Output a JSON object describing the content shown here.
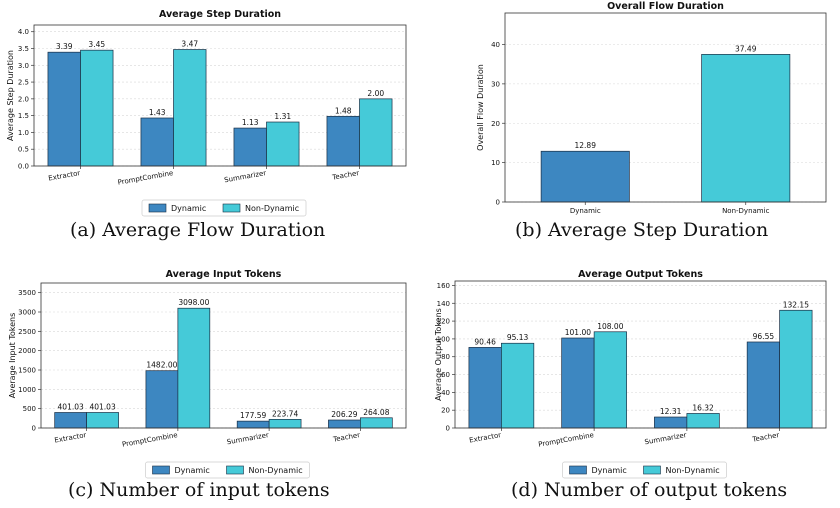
{
  "colors": {
    "dynamic": "#3d87c1",
    "nondynamic": "#45cad8",
    "edge": "#1a2e44"
  },
  "chart_data": [
    {
      "id": "a",
      "type": "bar",
      "title": "Average Step Duration",
      "ylabel": "Average Step Duration",
      "xlabel": "",
      "caption": "(a)  Average Flow Duration",
      "categories": [
        "Extractor",
        "PromptCombine",
        "Summarizer",
        "Teacher"
      ],
      "series": [
        {
          "name": "Dynamic",
          "values": [
            3.39,
            1.43,
            1.13,
            1.48
          ],
          "labels": [
            "3.39",
            "1.43",
            "1.13",
            "1.48"
          ]
        },
        {
          "name": "Non-Dynamic",
          "values": [
            3.45,
            3.47,
            1.31,
            2.0
          ],
          "labels": [
            "3.45",
            "3.47",
            "1.31",
            "2.00"
          ]
        }
      ],
      "ylim": [
        0,
        4.2
      ],
      "yticks": [
        0.0,
        0.5,
        1.0,
        1.5,
        2.0,
        2.5,
        3.0,
        3.5,
        4.0
      ],
      "yticklabels": [
        "0.0",
        "0.5",
        "1.0",
        "1.5",
        "2.0",
        "2.5",
        "3.0",
        "3.5",
        "4.0"
      ],
      "grid": true,
      "legend": "bottom"
    },
    {
      "id": "b",
      "type": "bar",
      "title": "Overall Flow Duration",
      "ylabel": "Overall Flow Duration",
      "xlabel": "",
      "caption": "(b)  Average Step Duration",
      "categories": [
        "Dynamic",
        "Non-Dynamic"
      ],
      "series": [
        {
          "values": [
            12.89,
            37.49
          ],
          "labels": [
            "12.89",
            "37.49"
          ]
        }
      ],
      "ylim": [
        0,
        48
      ],
      "yticks": [
        0,
        10,
        20,
        30,
        40
      ],
      "yticklabels": [
        "0",
        "10",
        "20",
        "30",
        "40"
      ],
      "grid": true,
      "legend": "none"
    },
    {
      "id": "c",
      "type": "bar",
      "title": "Average Input Tokens",
      "ylabel": "Average Input Tokens",
      "xlabel": "",
      "caption": "(c)  Number of input tokens",
      "categories": [
        "Extractor",
        "PromptCombine",
        "Summarizer",
        "Teacher"
      ],
      "series": [
        {
          "name": "Dynamic",
          "values": [
            401.03,
            1482.0,
            177.59,
            206.29
          ],
          "labels": [
            "401.03",
            "1482.00",
            "177.59",
            "206.29"
          ]
        },
        {
          "name": "Non-Dynamic",
          "values": [
            401.03,
            3098.0,
            223.74,
            264.08
          ],
          "labels": [
            "401.03",
            "3098.00",
            "223.74",
            "264.08"
          ]
        }
      ],
      "ylim": [
        0,
        3750
      ],
      "yticks": [
        0,
        500,
        1000,
        1500,
        2000,
        2500,
        3000,
        3500
      ],
      "yticklabels": [
        "0",
        "500",
        "1000",
        "1500",
        "2000",
        "2500",
        "3000",
        "3500"
      ],
      "grid": true,
      "legend": "bottom"
    },
    {
      "id": "d",
      "type": "bar",
      "title": "Average Output Tokens",
      "ylabel": "Average Output Tokens",
      "xlabel": "",
      "caption": "(d)  Number of output tokens",
      "categories": [
        "Extractor",
        "PromptCombine",
        "Summarizer",
        "Teacher"
      ],
      "series": [
        {
          "name": "Dynamic",
          "values": [
            90.46,
            101.0,
            12.31,
            96.55
          ],
          "labels": [
            "90.46",
            "101.00",
            "12.31",
            "96.55"
          ]
        },
        {
          "name": "Non-Dynamic",
          "values": [
            95.13,
            108.0,
            16.32,
            132.15
          ],
          "labels": [
            "95.13",
            "108.00",
            "16.32",
            "132.15"
          ]
        }
      ],
      "ylim": [
        0,
        165
      ],
      "yticks": [
        0,
        20,
        40,
        60,
        80,
        100,
        120,
        140,
        160
      ],
      "yticklabels": [
        "0",
        "20",
        "40",
        "60",
        "80",
        "100",
        "120",
        "140",
        "160"
      ],
      "grid": true,
      "legend": "bottom"
    }
  ]
}
